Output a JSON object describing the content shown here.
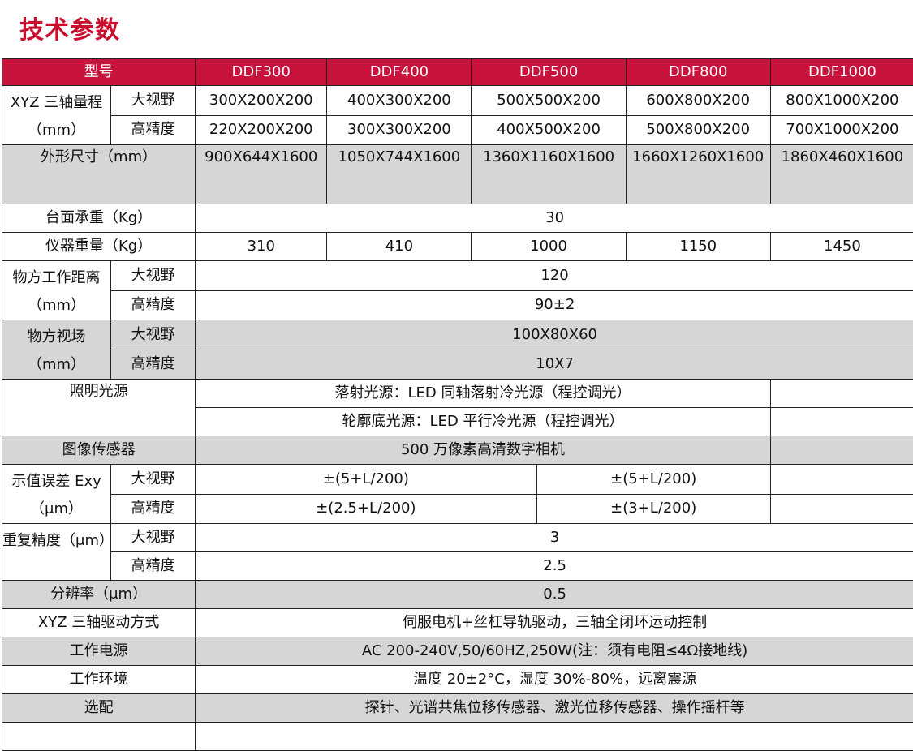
{
  "title": "技术参数",
  "header": {
    "label": "型号",
    "models": [
      "DDF300",
      "DDF400",
      "DDF500",
      "DDF800",
      "DDF1000"
    ]
  },
  "range": {
    "label": "XYZ 三轴量程（mm）",
    "sub1": "大视野",
    "sub2": "高精度",
    "wide": [
      "300X200X200",
      "400X300X200",
      "500X500X200",
      "600X800X200",
      "800X1000X200"
    ],
    "precise": [
      "220X200X200",
      "300X300X200",
      "400X500X200",
      "500X800X200",
      "700X1000X200"
    ]
  },
  "dimensions": {
    "label": "外形尺寸（mm）",
    "values": [
      "900X644X1600",
      "1050X744X1600",
      "1360X1160X1600",
      "1660X1260X1600",
      "1860X460X1600"
    ]
  },
  "load": {
    "label": "台面承重（Kg）",
    "value": "30"
  },
  "weight": {
    "label": "仪器重量（Kg）",
    "values": [
      "310",
      "410",
      "1000",
      "1150",
      "1450"
    ]
  },
  "work_distance": {
    "label": "物方工作距离（mm）",
    "sub1": "大视野",
    "sub2": "高精度",
    "wide": "120",
    "precise": "90±2"
  },
  "fov": {
    "label": "物方视场（mm）",
    "sub1": "大视野",
    "sub2": "高精度",
    "wide": "100X80X60",
    "precise": "10X7"
  },
  "lighting": {
    "label": "照明光源",
    "line1": "落射光源：LED 同轴落射冷光源（程控调光）",
    "line2": "轮廓底光源：LED 平行冷光源（程控调光）"
  },
  "sensor": {
    "label": "图像传感器",
    "value": "500 万像素高清数字相机"
  },
  "error": {
    "label": "示值误差 Exy（μm）",
    "sub1": "大视野",
    "sub2": "高精度",
    "wide_a": "±(5+L/200)",
    "wide_b": "±(5+L/200)",
    "precise_a": "±(2.5+L/200)",
    "precise_b": "±(3+L/200)"
  },
  "repeat": {
    "label": "重复精度（μm）",
    "sub1": "大视野",
    "sub2": "高精度",
    "wide": "3",
    "precise": "2.5"
  },
  "resolution": {
    "label": "分辨率（μm）",
    "value": "0.5"
  },
  "drive": {
    "label": "XYZ 三轴驱动方式",
    "value": "伺服电机+丝杠导轨驱动，三轴全闭环运动控制"
  },
  "power": {
    "label": "工作电源",
    "value": "AC 200-240V,50/60HZ,250W(注：须有电阻≤4Ω接地线)"
  },
  "environment": {
    "label": "工作环境",
    "value": "温度 20±2°C，湿度 30%-80%，远离震源"
  },
  "options": {
    "label": "选配",
    "value": "探针、光谱共焦位移传感器、激光位移传感器、操作摇杆等"
  },
  "colors": {
    "header_bg": "#c8143c",
    "title": "#c8102e",
    "row_gray": "#d6d6d6"
  }
}
